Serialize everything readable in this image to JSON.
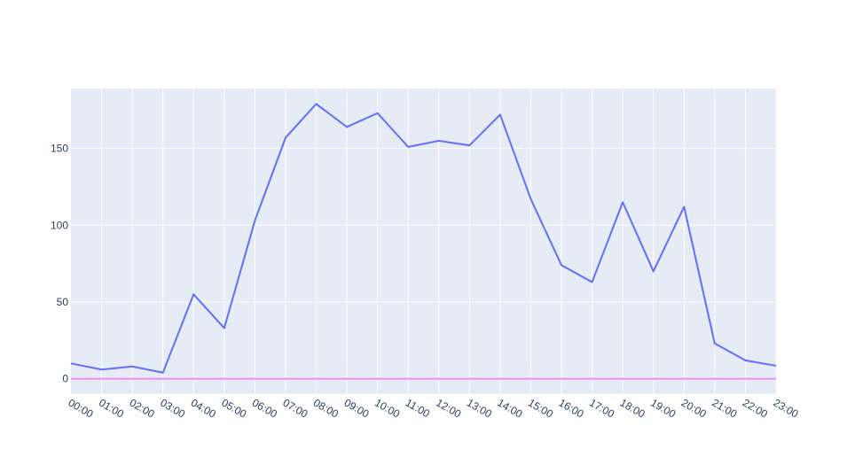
{
  "chart_data": {
    "type": "line",
    "title": "",
    "xlabel": "",
    "ylabel": "",
    "categories": [
      "00:00",
      "01:00",
      "02:00",
      "03:00",
      "04:00",
      "05:00",
      "06:00",
      "07:00",
      "08:00",
      "09:00",
      "10:00",
      "11:00",
      "12:00",
      "13:00",
      "14:00",
      "15:00",
      "16:00",
      "17:00",
      "18:00",
      "19:00",
      "20:00",
      "21:00",
      "22:00",
      "23:00"
    ],
    "series": [
      {
        "color": "#636efa",
        "values": [
          10,
          6,
          8,
          4,
          55,
          33,
          103,
          157,
          179,
          164,
          173,
          151,
          155,
          152,
          172,
          117,
          74,
          63,
          115,
          70,
          112,
          23,
          12,
          8.5
        ]
      },
      {
        "color": "#ef8cf5",
        "values": [
          0,
          0,
          0,
          0,
          0,
          0,
          0,
          0,
          0,
          0,
          0,
          0,
          0,
          0,
          0,
          0,
          0,
          0,
          0,
          0,
          0,
          0,
          0,
          0
        ]
      }
    ],
    "ylim": [
      -10,
      189
    ],
    "yticks": [
      0,
      50,
      100,
      150
    ],
    "grid": true,
    "legend": "none",
    "plot_background": "#e5ecf6",
    "grid_color": "#ffffff"
  }
}
